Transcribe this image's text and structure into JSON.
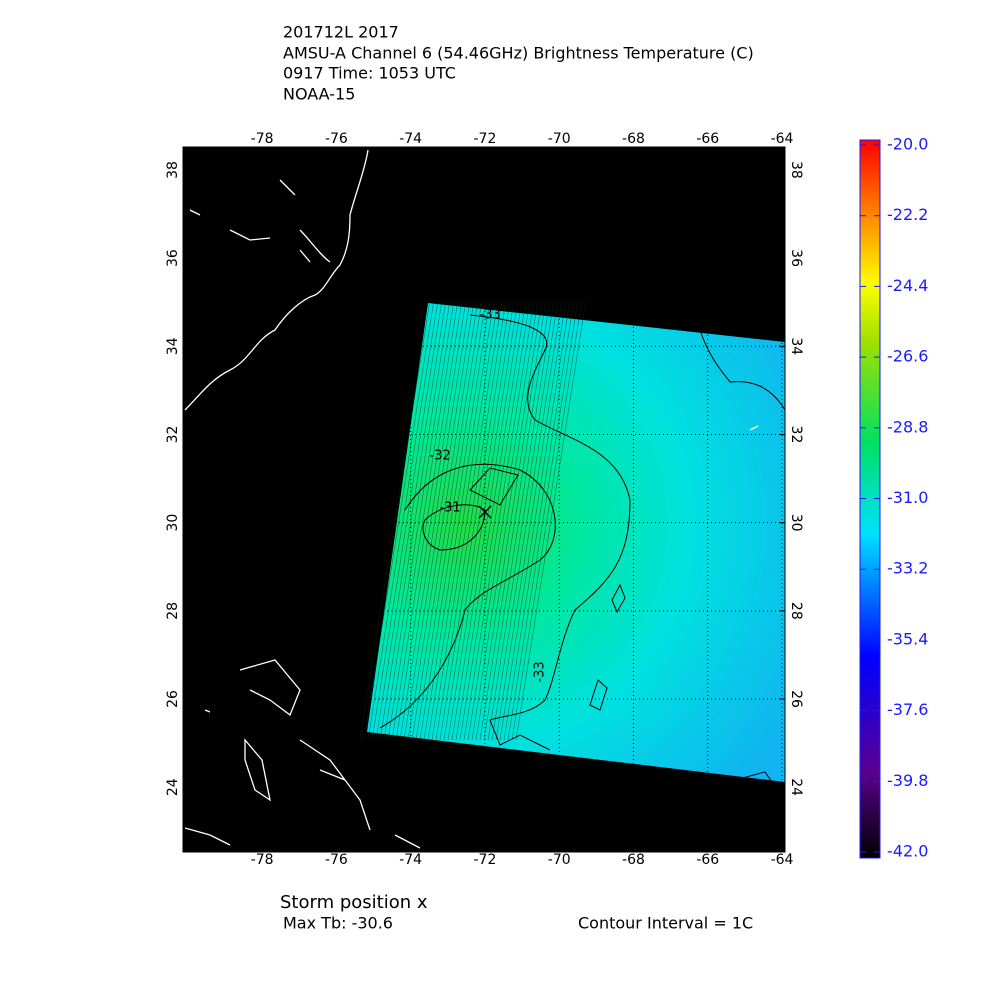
{
  "title_lines": [
    "201712L 2017",
    "AMSU-A Channel 6 (54.46GHz) Brightness Temperature (C)",
    "0917 Time: 1053 UTC",
    "NOAA-15"
  ],
  "map": {
    "lonlim": [
      -80.13,
      -63.92
    ],
    "latlim": [
      22.53,
      38.52
    ],
    "lon_ticks": [
      -78,
      -76,
      -74,
      -72,
      -70,
      -68,
      -66,
      -64
    ],
    "lat_ticks": [
      24,
      26,
      28,
      30,
      32,
      34,
      36,
      38
    ],
    "contour_labels": [
      "-33",
      "-32",
      "-31",
      "-33"
    ]
  },
  "colorbar": {
    "lim": [
      -42,
      -20
    ],
    "ticks": [
      {
        "value": -20,
        "label": "-20.0"
      },
      {
        "value": -22.2,
        "label": "-22.2"
      },
      {
        "value": -24.4,
        "label": "-24.4"
      },
      {
        "value": -26.6,
        "label": "-26.6"
      },
      {
        "value": -28.8,
        "label": "-28.8"
      },
      {
        "value": -31,
        "label": "-31.0"
      },
      {
        "value": -33.2,
        "label": "-33.2"
      },
      {
        "value": -35.4,
        "label": "-35.4"
      },
      {
        "value": -37.6,
        "label": "-37.6"
      },
      {
        "value": -39.8,
        "label": "-39.8"
      },
      {
        "value": -42,
        "label": "-42.0"
      }
    ]
  },
  "footer": {
    "storm_position": "Storm position x",
    "max_tb": "Max Tb: -30.6",
    "contour_interval": "Contour Interval = 1C"
  }
}
